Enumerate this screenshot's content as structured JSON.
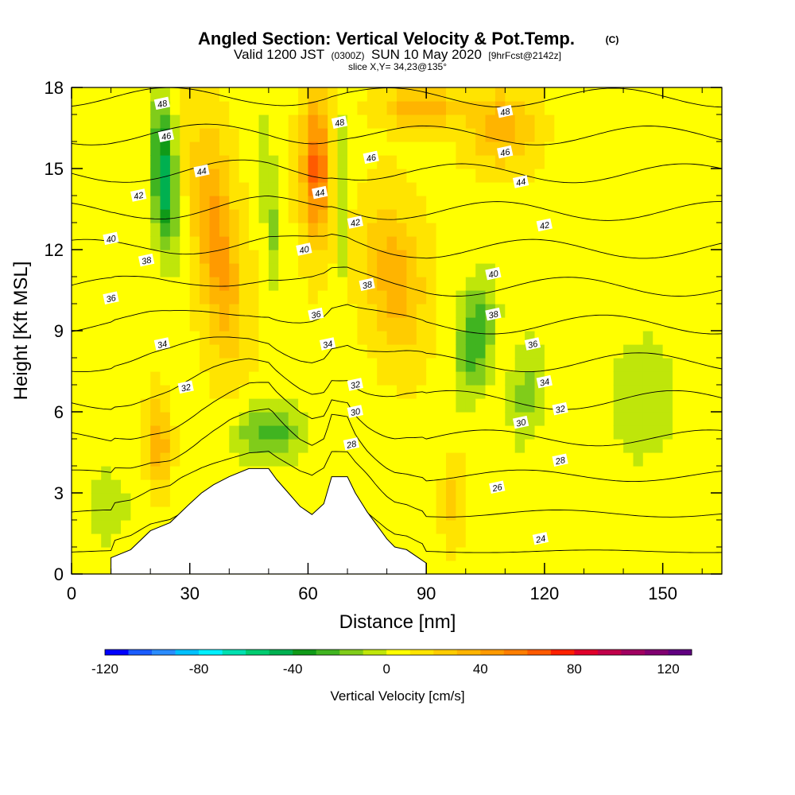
{
  "header": {
    "title_main": "Angled Section: Vertical Velocity & Pot.Temp.",
    "title_units": "(C)",
    "subtitle_a": "Valid 1200 JST",
    "subtitle_b": "(0300Z)",
    "subtitle_c": "SUN 10 May 2020",
    "subtitle_d": "[9hrFcst@2142z]",
    "slice": "slice X,Y= 34,23@135°"
  },
  "chart_data": {
    "type": "heatmap",
    "title": "Angled Section: Vertical Velocity & Pot.Temp.",
    "xlabel": "Distance [nm]",
    "ylabel": "Height [Kft MSL]",
    "xlim": [
      0,
      165
    ],
    "ylim": [
      0,
      18
    ],
    "x_ticks": [
      0,
      30,
      60,
      90,
      120,
      150
    ],
    "y_ticks": [
      0,
      3,
      6,
      9,
      12,
      15,
      18
    ],
    "x_tick_labels": [
      "0",
      "30",
      "60",
      "90",
      "120",
      "150"
    ],
    "y_tick_labels": [
      "0",
      "3",
      "6",
      "9",
      "12",
      "15",
      "18"
    ],
    "grid": false,
    "field": {
      "name": "Vertical Velocity",
      "units": "cm/s",
      "min": -120,
      "max": 130,
      "background": 8,
      "features": [
        {
          "x0": 20,
          "x1": 27,
          "y0": 11.5,
          "y1": 18,
          "w": -55,
          "tilt": -0.1
        },
        {
          "x0": 31,
          "x1": 43,
          "y0": 7.5,
          "y1": 17,
          "w": 38,
          "tilt": -0.25
        },
        {
          "x0": 48,
          "x1": 53,
          "y0": 9,
          "y1": 18,
          "w": -20,
          "tilt": -0.2
        },
        {
          "x0": 58,
          "x1": 66,
          "y0": 12,
          "y1": 18,
          "w": 55,
          "tilt": 0
        },
        {
          "x0": 67,
          "x1": 70,
          "y0": 10,
          "y1": 18,
          "w": -20,
          "tilt": 0
        },
        {
          "x0": 74,
          "x1": 90,
          "y0": 8,
          "y1": 14,
          "w": 30,
          "tilt": -0.2
        },
        {
          "x0": 97,
          "x1": 108,
          "y0": 6,
          "y1": 11.5,
          "w": -35,
          "tilt": 0.25
        },
        {
          "x0": 110,
          "x1": 121,
          "y0": 4.5,
          "y1": 9,
          "w": -22,
          "tilt": 0.15
        },
        {
          "x0": 40,
          "x1": 60,
          "y0": 4,
          "y1": 6.5,
          "w": -35,
          "tilt": 0
        },
        {
          "x0": 19,
          "x1": 25,
          "y0": 3,
          "y1": 6.5,
          "w": 35,
          "tilt": 0
        },
        {
          "x0": 78,
          "x1": 100,
          "y0": 16.5,
          "y1": 18,
          "w": 30,
          "tilt": 0
        },
        {
          "x0": 100,
          "x1": 118,
          "y0": 15,
          "y1": 18,
          "w": 30,
          "tilt": 0
        },
        {
          "x0": 125,
          "x1": 165,
          "y0": 1,
          "y1": 12,
          "w": -10,
          "tilt": 0.1
        },
        {
          "x0": 0,
          "x1": 18,
          "y0": 0,
          "y1": 5,
          "w": -12,
          "tilt": 0
        },
        {
          "x0": 94,
          "x1": 100,
          "y0": 1,
          "y1": 4.5,
          "w": 15,
          "tilt": 0
        }
      ],
      "terrain_kft": [
        [
          10,
          0.6
        ],
        [
          15,
          0.9
        ],
        [
          20,
          1.6
        ],
        [
          25,
          1.9
        ],
        [
          30,
          2.6
        ],
        [
          33,
          3.0
        ],
        [
          36,
          3.3
        ],
        [
          40,
          3.6
        ],
        [
          45,
          3.9
        ],
        [
          50,
          3.9
        ],
        [
          52,
          3.5
        ],
        [
          55,
          3.0
        ],
        [
          58,
          2.5
        ],
        [
          61,
          2.2
        ],
        [
          64,
          2.6
        ],
        [
          66,
          3.6
        ],
        [
          70,
          3.6
        ],
        [
          72,
          3.0
        ],
        [
          75,
          2.3
        ],
        [
          78,
          1.7
        ],
        [
          80,
          1.3
        ],
        [
          82,
          1.0
        ],
        [
          85,
          0.9
        ],
        [
          88,
          0.6
        ],
        [
          90,
          0.4
        ]
      ]
    },
    "series": [
      {
        "name": "Pot.Temp.",
        "levels": [
          24,
          26,
          28,
          30,
          32,
          34,
          36,
          38,
          40,
          42,
          44,
          46,
          48
        ]
      }
    ],
    "contour_labels": [
      {
        "text": "48",
        "x": 23,
        "y": 17.4
      },
      {
        "text": "48",
        "x": 68,
        "y": 16.7
      },
      {
        "text": "48",
        "x": 110,
        "y": 17.1
      },
      {
        "text": "46",
        "x": 24,
        "y": 16.2
      },
      {
        "text": "46",
        "x": 76,
        "y": 15.4
      },
      {
        "text": "46",
        "x": 110,
        "y": 15.6
      },
      {
        "text": "44",
        "x": 33,
        "y": 14.9
      },
      {
        "text": "44",
        "x": 63,
        "y": 14.1
      },
      {
        "text": "44",
        "x": 114,
        "y": 14.5
      },
      {
        "text": "42",
        "x": 17,
        "y": 14.0
      },
      {
        "text": "42",
        "x": 72,
        "y": 13.0
      },
      {
        "text": "42",
        "x": 120,
        "y": 12.9
      },
      {
        "text": "40",
        "x": 10,
        "y": 12.4
      },
      {
        "text": "40",
        "x": 59,
        "y": 12.0
      },
      {
        "text": "40",
        "x": 107,
        "y": 11.1
      },
      {
        "text": "38",
        "x": 19,
        "y": 11.6
      },
      {
        "text": "38",
        "x": 75,
        "y": 10.7
      },
      {
        "text": "38",
        "x": 107,
        "y": 9.6
      },
      {
        "text": "36",
        "x": 10,
        "y": 10.2
      },
      {
        "text": "36",
        "x": 62,
        "y": 9.6
      },
      {
        "text": "36",
        "x": 117,
        "y": 8.5
      },
      {
        "text": "34",
        "x": 23,
        "y": 8.5
      },
      {
        "text": "34",
        "x": 65,
        "y": 8.5
      },
      {
        "text": "34",
        "x": 120,
        "y": 7.1
      },
      {
        "text": "32",
        "x": 29,
        "y": 6.9
      },
      {
        "text": "32",
        "x": 72,
        "y": 7.0
      },
      {
        "text": "32",
        "x": 124,
        "y": 6.1
      },
      {
        "text": "30",
        "x": 72,
        "y": 6.0
      },
      {
        "text": "30",
        "x": 114,
        "y": 5.6
      },
      {
        "text": "28",
        "x": 71,
        "y": 4.8
      },
      {
        "text": "28",
        "x": 124,
        "y": 4.2
      },
      {
        "text": "26",
        "x": 108,
        "y": 3.2
      },
      {
        "text": "24",
        "x": 119,
        "y": 1.3
      }
    ]
  },
  "colorbar": {
    "label": "Vertical Velocity [cm/s]",
    "tick_labels": [
      "-120",
      "-80",
      "-40",
      "0",
      "40",
      "80",
      "120"
    ],
    "tick_values": [
      -120,
      -80,
      -40,
      0,
      40,
      80,
      120
    ],
    "colors": [
      "#0000ff",
      "#1a5cff",
      "#2a8cff",
      "#00c0ff",
      "#00f0ff",
      "#00e0b0",
      "#00cc70",
      "#00b050",
      "#109a18",
      "#40b420",
      "#80cc1a",
      "#bfe60a",
      "#ffff00",
      "#ffe400",
      "#ffcc00",
      "#ffb400",
      "#ff9a00",
      "#ff7e00",
      "#ff5a00",
      "#ff2000",
      "#e0002a",
      "#c0004a",
      "#a00060",
      "#800070",
      "#600080"
    ]
  }
}
